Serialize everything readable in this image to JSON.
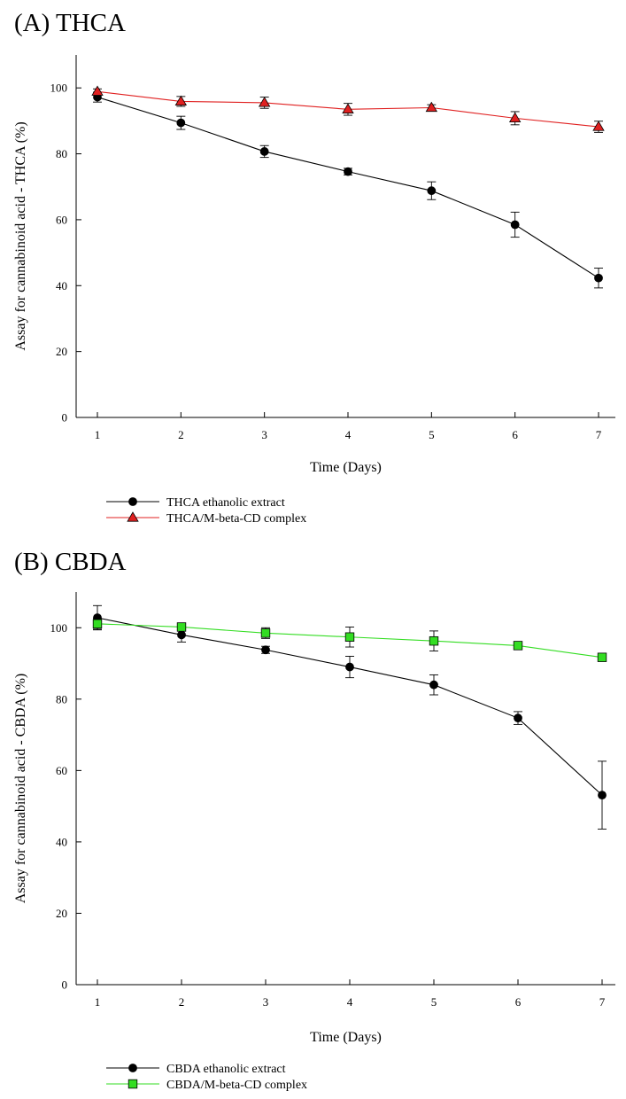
{
  "chart_data": [
    {
      "type": "line",
      "panel_title": "(A) THCA",
      "xlabel": "Time (Days)",
      "ylabel": "Assay for cannabinoid acid - THCA (%)",
      "xlim": [
        1,
        7
      ],
      "ylim": [
        0,
        110
      ],
      "xticks": [
        1,
        2,
        3,
        4,
        5,
        6,
        7
      ],
      "yticks": [
        0,
        20,
        40,
        60,
        80,
        100
      ],
      "grid": false,
      "legend_position": "bottom-left",
      "series": [
        {
          "name": "THCA ethanolic extract",
          "marker": "circle",
          "line_color": "#000000",
          "marker_color": "#000000",
          "x": [
            1,
            2,
            3,
            4,
            5,
            6,
            7
          ],
          "y": [
            97.2,
            89.4,
            80.7,
            74.6,
            68.8,
            58.5,
            42.3
          ],
          "err": [
            1.5,
            2.0,
            1.8,
            1.0,
            2.7,
            3.8,
            3.0
          ]
        },
        {
          "name": "THCA/M-beta-CD complex",
          "marker": "triangle",
          "line_color": "#e02020",
          "marker_color": "#e02020",
          "x": [
            1,
            2,
            3,
            4,
            5,
            6,
            7
          ],
          "y": [
            98.9,
            95.9,
            95.5,
            93.5,
            94.0,
            90.8,
            88.2
          ],
          "err": [
            0.8,
            1.5,
            1.7,
            1.8,
            0.9,
            2.0,
            1.7
          ]
        }
      ]
    },
    {
      "type": "line",
      "panel_title": "(B) CBDA",
      "xlabel": "Time (Days)",
      "ylabel": "Assay for cannabinoid acid - CBDA (%)",
      "xlim": [
        1,
        7
      ],
      "ylim": [
        0,
        110
      ],
      "xticks": [
        1,
        2,
        3,
        4,
        5,
        6,
        7
      ],
      "yticks": [
        0,
        20,
        40,
        60,
        80,
        100
      ],
      "grid": false,
      "legend_position": "bottom-left",
      "series": [
        {
          "name": "CBDA ethanolic extract",
          "marker": "circle",
          "line_color": "#000000",
          "marker_color": "#000000",
          "x": [
            1,
            2,
            3,
            4,
            5,
            6,
            7
          ],
          "y": [
            102.8,
            98.0,
            93.8,
            89.0,
            84.0,
            74.7,
            53.1
          ],
          "err": [
            3.4,
            2.0,
            1.0,
            3.0,
            2.8,
            1.8,
            9.5
          ]
        },
        {
          "name": "CBDA/M-beta-CD complex",
          "marker": "square",
          "line_color": "#33dd22",
          "marker_color": "#33dd22",
          "x": [
            1,
            2,
            3,
            4,
            5,
            6,
            7
          ],
          "y": [
            101.1,
            100.2,
            98.5,
            97.4,
            96.3,
            95.0,
            91.7
          ],
          "err": [
            1.5,
            1.0,
            1.5,
            2.8,
            2.8,
            0.5,
            0.5
          ]
        }
      ]
    }
  ]
}
